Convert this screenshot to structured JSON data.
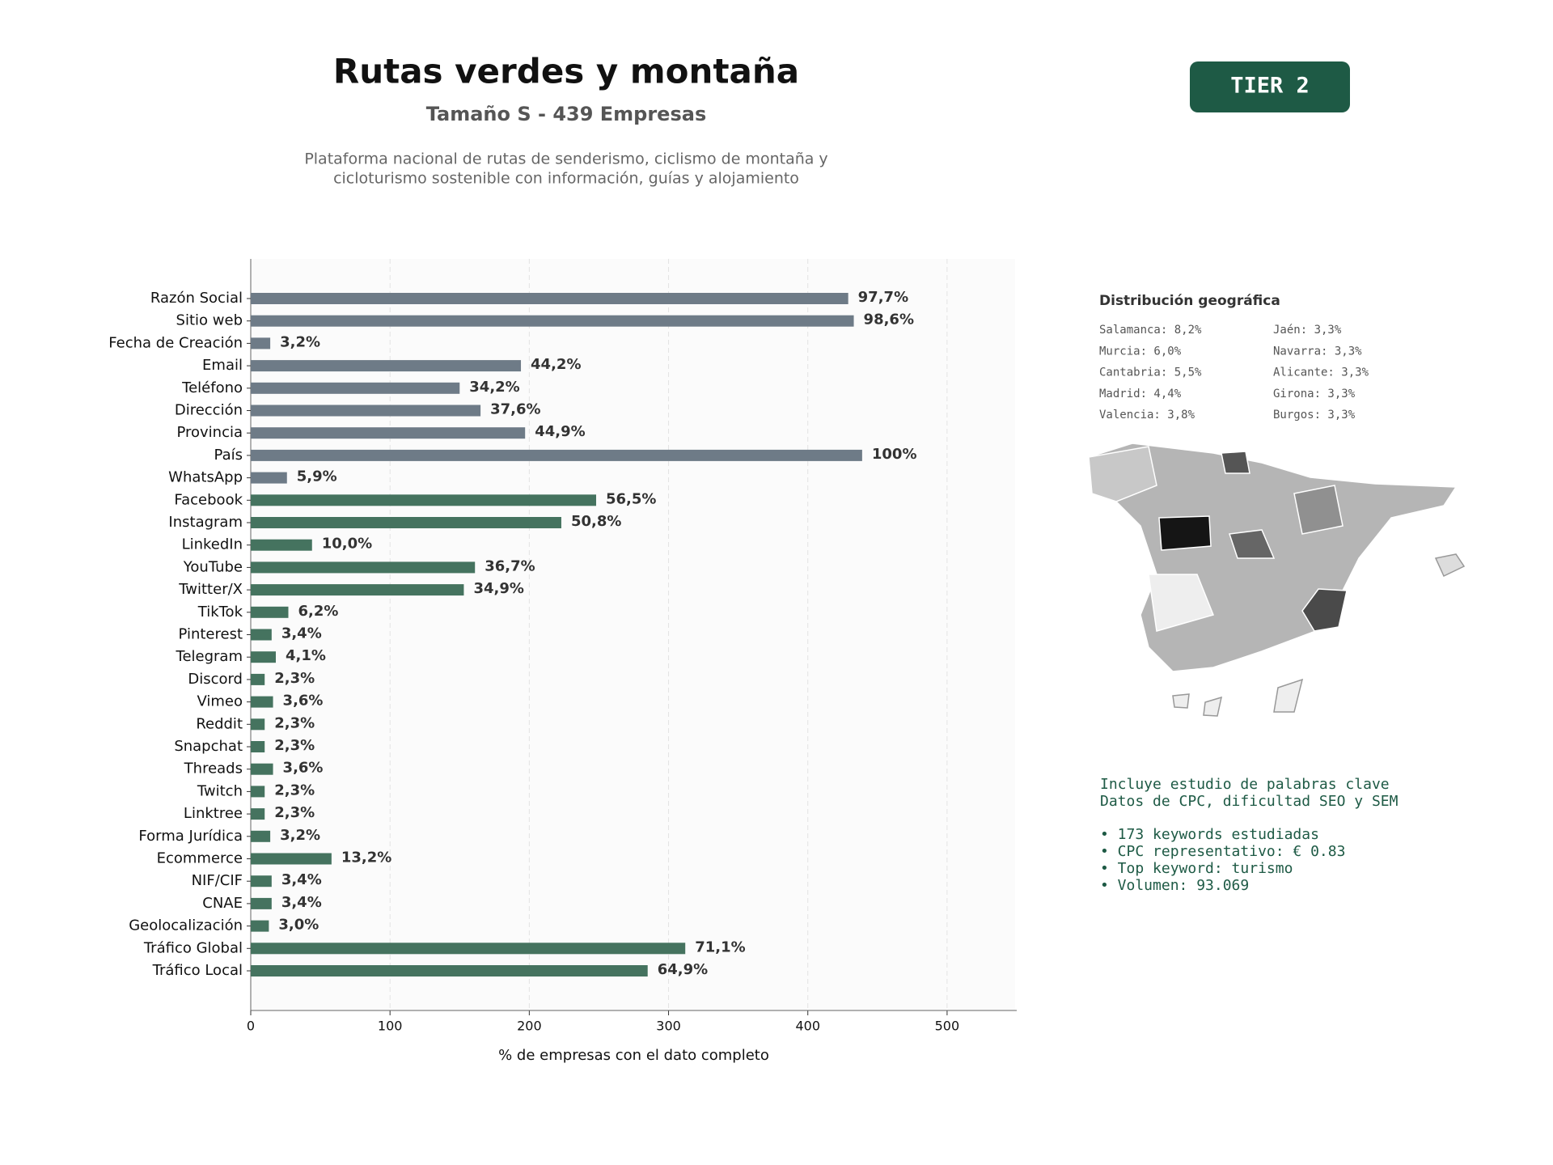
{
  "header": {
    "title": "Rutas verdes y montaña",
    "subtitle": "Tamaño S - 439 Empresas",
    "description": [
      "Plataforma nacional de rutas de senderismo, ciclismo de montaña y",
      "cicloturismo sostenible con información, guías y alojamiento"
    ],
    "badge": "TIER 2"
  },
  "geo": {
    "title": "Distribución geográfica",
    "entries": [
      "Salamanca: 8,2%",
      "Murcia: 6,0%",
      "Cantabria: 5,5%",
      "Madrid: 4,4%",
      "Valencia: 3,8%",
      "Jaén: 3,3%",
      "Navarra: 3,3%",
      "Alicante: 3,3%",
      "Girona: 3,3%",
      "Burgos: 3,3%"
    ]
  },
  "keywords": {
    "lines": [
      "Incluye estudio de palabras clave",
      "Datos de CPC, dificultad SEO y SEM"
    ],
    "bullets": [
      "• 173 keywords estudiadas",
      "• CPC representativo: € 0.83",
      "• Top keyword: turismo",
      "• Volumen: 93.069"
    ]
  },
  "chart_data": {
    "type": "barh",
    "xlabel": "% de empresas con el dato completo",
    "categories": [
      "Razón Social",
      "Sitio web",
      "Fecha de Creación",
      "Email",
      "Teléfono",
      "Dirección",
      "Provincia",
      "País",
      "WhatsApp",
      "Facebook",
      "Instagram",
      "LinkedIn",
      "YouTube",
      "Twitter/X",
      "TikTok",
      "Pinterest",
      "Telegram",
      "Discord",
      "Vimeo",
      "Reddit",
      "Snapchat",
      "Threads",
      "Twitch",
      "Linktree",
      "Forma Jurídica",
      "Ecommerce",
      "NIF/CIF",
      "CNAE",
      "Geolocalización",
      "Tráfico Global",
      "Tráfico Local"
    ],
    "values": [
      429,
      433,
      14,
      194,
      150,
      165,
      197,
      439,
      26,
      248,
      223,
      44,
      161,
      153,
      27,
      15,
      18,
      10,
      16,
      10,
      10,
      16,
      10,
      10,
      14,
      58,
      15,
      15,
      13,
      312,
      285
    ],
    "value_labels": [
      "97,7%",
      "98,6%",
      "3,2%",
      "44,2%",
      "34,2%",
      "37,6%",
      "44,9%",
      "100%",
      "5,9%",
      "56,5%",
      "50,8%",
      "10,0%",
      "36,7%",
      "34,9%",
      "6,2%",
      "3,4%",
      "4,1%",
      "2,3%",
      "3,6%",
      "2,3%",
      "2,3%",
      "3,6%",
      "2,3%",
      "2,3%",
      "3,2%",
      "13,2%",
      "3,4%",
      "3,4%",
      "3,0%",
      "71,1%",
      "64,9%"
    ],
    "colors": [
      "#6e7b87",
      "#6e7b87",
      "#6e7b87",
      "#6e7b87",
      "#6e7b87",
      "#6e7b87",
      "#6e7b87",
      "#6e7b87",
      "#6e7b87",
      "#45735f",
      "#45735f",
      "#45735f",
      "#45735f",
      "#45735f",
      "#45735f",
      "#45735f",
      "#45735f",
      "#45735f",
      "#45735f",
      "#45735f",
      "#45735f",
      "#45735f",
      "#45735f",
      "#45735f",
      "#45735f",
      "#45735f",
      "#45735f",
      "#45735f",
      "#45735f",
      "#45735f",
      "#45735f"
    ],
    "xlim": [
      0,
      550
    ],
    "xticks": [
      0,
      100,
      200,
      300,
      400,
      500
    ],
    "grid": true
  }
}
